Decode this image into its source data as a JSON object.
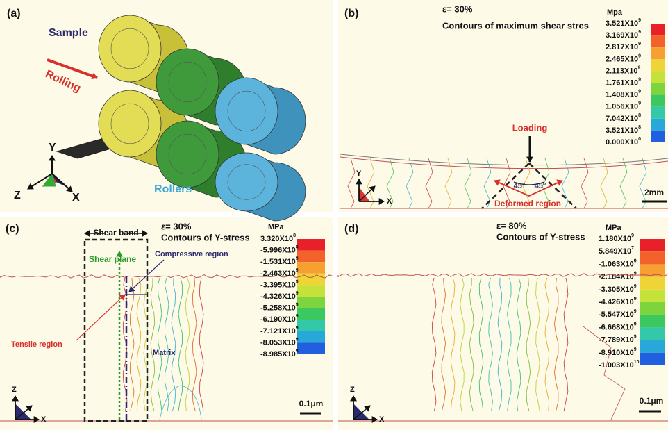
{
  "panels": [
    {
      "label": "(a)",
      "sample": "Sample",
      "rolling": "Rolling",
      "rollers": "Rollers",
      "axes": {
        "y": "Y",
        "z": "Z",
        "x": "X"
      }
    },
    {
      "label": "(b)",
      "strain": "ε= 30%",
      "title": "Contours of maximum shear stres",
      "unit": "Mpa",
      "legend": [
        {
          "base": "3.521X10",
          "exp": "9"
        },
        {
          "base": "3.169X10",
          "exp": "9"
        },
        {
          "base": "2.817X10",
          "exp": "9"
        },
        {
          "base": "2.465X10",
          "exp": "9"
        },
        {
          "base": "2.113X10",
          "exp": "9"
        },
        {
          "base": "1.761X10",
          "exp": "9"
        },
        {
          "base": "1.408X10",
          "exp": "9"
        },
        {
          "base": "1.056X10",
          "exp": "9"
        },
        {
          "base": "7.042X10",
          "exp": "8"
        },
        {
          "base": "3.521X10",
          "exp": "8"
        },
        {
          "base": "0.000X10",
          "exp": "0"
        }
      ],
      "loading": "Loading",
      "angles": [
        "45°",
        "45°"
      ],
      "region": "Deformed region",
      "scale": "2mm",
      "axes": {
        "y": "Y",
        "x": "X"
      }
    },
    {
      "label": "(c)",
      "strain": "ε= 30%",
      "title": "Contours of Y-stress",
      "unit": "MPa",
      "legend": [
        {
          "base": "3.320X10",
          "exp": "8"
        },
        {
          "base": "-5.996X10",
          "exp": "8"
        },
        {
          "base": "-1.531X10",
          "exp": "9"
        },
        {
          "base": "-2.463X10",
          "exp": "9"
        },
        {
          "base": "-3.395X10",
          "exp": "9"
        },
        {
          "base": "-4.326X10",
          "exp": "9"
        },
        {
          "base": "-5.258X10",
          "exp": "9"
        },
        {
          "base": "-6.190X10",
          "exp": "9"
        },
        {
          "base": "-7.121X10",
          "exp": "9"
        },
        {
          "base": "-8.053X10",
          "exp": "9"
        },
        {
          "base": "-8.985X10",
          "exp": "9"
        }
      ],
      "shear_band": "Shear band",
      "shear_plane": "Shear plane",
      "compressive": "Compressive region",
      "tensile": "Tensile region",
      "matrix": "Matrix",
      "scale": "0.1μm",
      "axes": {
        "z": "Z",
        "x": "X"
      }
    },
    {
      "label": "(d)",
      "strain": "ε= 80%",
      "title": "Contours of Y-stress",
      "unit": "MPa",
      "legend": [
        {
          "base": "1.180X10",
          "exp": "9"
        },
        {
          "base": "5.849X10",
          "exp": "7"
        },
        {
          "base": "-1.063X10",
          "exp": "9"
        },
        {
          "base": "-2.184X10",
          "exp": "9"
        },
        {
          "base": "-3.305X10",
          "exp": "9"
        },
        {
          "base": "-4.426X10",
          "exp": "9"
        },
        {
          "base": "-5.547X10",
          "exp": "9"
        },
        {
          "base": "-6.668X10",
          "exp": "9"
        },
        {
          "base": "-7.789X10",
          "exp": "9"
        },
        {
          "base": "-8.910X10",
          "exp": "9"
        },
        {
          "base": "-1.003X10",
          "exp": "10"
        }
      ],
      "scale": "0.1μm",
      "axes": {
        "z": "Z",
        "x": "X"
      }
    }
  ]
}
